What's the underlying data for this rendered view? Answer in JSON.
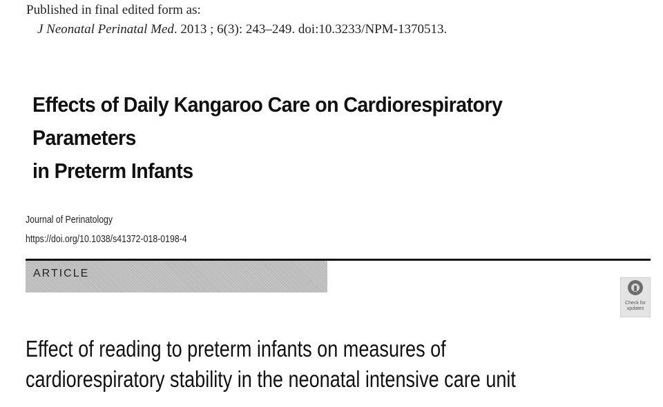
{
  "header": {
    "published_label": "Published in final edited form as:",
    "journal": "J Neonatal Perinatal Med",
    "citation_rest": ". 2013 ; 6(3): 243–249. doi:10.3233/NPM-1370513."
  },
  "paper1": {
    "title_line1": "Effects of Daily Kangaroo Care on Cardiorespiratory Parameters",
    "title_line2": "in Preterm Infants"
  },
  "paper2": {
    "journal_name": "Journal of Perinatology",
    "doi": "https://doi.org/10.1038/s41372-018-0198-4",
    "section_label": "ARTICLE",
    "badge_line1": "Check for",
    "badge_line2": "updates",
    "title_line1": "Effect of reading to preterm infants on measures of",
    "title_line2": "cardiorespiratory stability in the neonatal intensive care unit"
  },
  "icons": {
    "badge_icon": "check-for-updates-icon"
  },
  "colors": {
    "section_band": "#b9b9b9",
    "text": "#111111"
  }
}
